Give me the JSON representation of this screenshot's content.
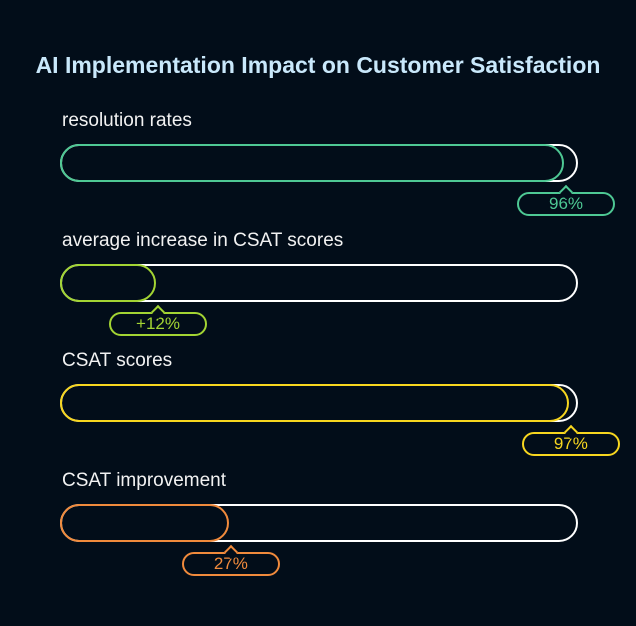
{
  "chart_data": {
    "type": "bar",
    "orientation": "horizontal",
    "title": "AI Implementation Impact on Customer Satisfaction",
    "bars": [
      {
        "label": "resolution rates",
        "value": 96,
        "display": "96%",
        "color": "#4ec894"
      },
      {
        "label": "average increase in CSAT scores",
        "value": 12,
        "display": "+12%",
        "color": "#a3d433"
      },
      {
        "label": "CSAT scores",
        "value": 97,
        "display": "97%",
        "color": "#f7d61f"
      },
      {
        "label": "CSAT improvement",
        "value": 27,
        "display": "27%",
        "color": "#f08a3c"
      }
    ],
    "xlim": [
      0,
      100
    ]
  }
}
